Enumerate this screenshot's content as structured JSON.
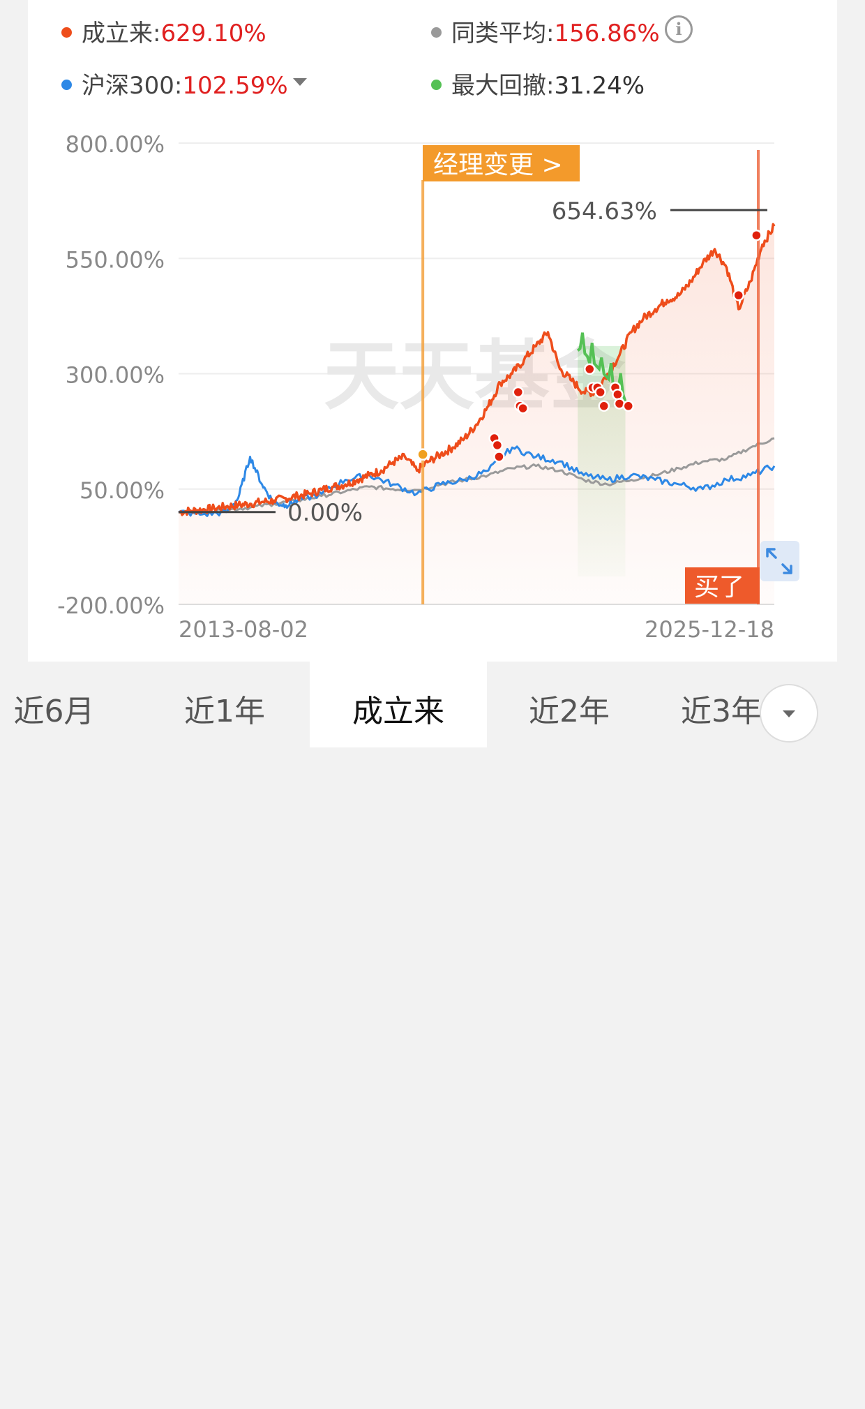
{
  "legend": {
    "fund": {
      "label": "成立来:",
      "value": "629.10%",
      "color": "#ee4d1b"
    },
    "peer": {
      "label": "同类平均:",
      "value": "156.86%",
      "color": "#9a9a9a"
    },
    "index": {
      "label": "沪深300:",
      "value": "102.59%",
      "color": "#2d88e6"
    },
    "drawdown": {
      "label": "最大回撤:",
      "value": "31.24%",
      "color": "#55c155"
    }
  },
  "icons": {
    "info": "info-icon",
    "dropdown": "chevron-down-icon",
    "expand": "expand-icon",
    "more": "chevron-down-icon"
  },
  "chart_data": {
    "type": "line",
    "yticks": [
      "800.00%",
      "550.00%",
      "300.00%",
      "50.00%",
      "-200.00%"
    ],
    "ylim": [
      -200,
      800
    ],
    "x_start_label": "2013-08-02",
    "x_end_label": "2025-12-18",
    "max_label": "654.63%",
    "zero_label": "0.00%",
    "manager_change_label": "经理变更 >",
    "buy_label": "买了",
    "watermark": "天天基金",
    "series": [
      {
        "name": "成立来",
        "color": "#ee4d1b",
        "x": [
          0,
          2,
          4,
          6,
          8,
          10,
          12,
          14,
          16,
          18,
          20,
          22,
          24,
          26,
          28,
          30,
          32,
          34,
          36,
          38,
          40,
          42,
          44,
          46,
          48,
          50,
          52,
          54,
          56,
          58,
          60,
          62,
          64,
          66,
          68,
          70,
          72,
          74,
          76,
          78,
          80,
          82,
          84,
          86,
          88,
          90,
          92,
          94,
          96,
          98,
          100
        ],
        "y": [
          0,
          3,
          5,
          8,
          12,
          15,
          18,
          22,
          25,
          30,
          35,
          40,
          48,
          55,
          60,
          70,
          80,
          90,
          108,
          120,
          90,
          110,
          125,
          140,
          160,
          190,
          230,
          280,
          300,
          330,
          360,
          390,
          310,
          285,
          260,
          260,
          300,
          340,
          390,
          420,
          440,
          460,
          470,
          500,
          540,
          570,
          530,
          440,
          500,
          580,
          620
        ]
      },
      {
        "name": "同类平均",
        "color": "#9a9a9a",
        "x": [
          0,
          4,
          8,
          12,
          16,
          20,
          24,
          28,
          32,
          36,
          40,
          44,
          48,
          52,
          56,
          60,
          64,
          68,
          72,
          76,
          80,
          84,
          88,
          92,
          96,
          100
        ],
        "y": [
          0,
          2,
          5,
          10,
          18,
          25,
          35,
          45,
          55,
          50,
          48,
          60,
          70,
          80,
          95,
          100,
          90,
          70,
          60,
          70,
          80,
          95,
          110,
          115,
          140,
          160
        ]
      },
      {
        "name": "沪深300",
        "color": "#2d88e6",
        "x": [
          0,
          4,
          8,
          10,
          12,
          14,
          16,
          18,
          20,
          24,
          28,
          32,
          36,
          40,
          44,
          48,
          52,
          56,
          60,
          64,
          68,
          72,
          76,
          80,
          84,
          88,
          92,
          96,
          100
        ],
        "y": [
          0,
          -5,
          0,
          30,
          120,
          60,
          20,
          15,
          25,
          40,
          70,
          80,
          60,
          40,
          60,
          70,
          90,
          140,
          120,
          110,
          80,
          70,
          80,
          70,
          60,
          50,
          70,
          80,
          100
        ]
      },
      {
        "name": "最大回撤",
        "color": "#55c155",
        "x": [
          67,
          75
        ],
        "y": [
          360,
          250
        ]
      }
    ],
    "buy_markers": [
      {
        "x": 53,
        "y": 160
      },
      {
        "x": 53.5,
        "y": 145
      },
      {
        "x": 53.8,
        "y": 120
      },
      {
        "x": 57,
        "y": 260
      },
      {
        "x": 57.3,
        "y": 230
      },
      {
        "x": 57.8,
        "y": 225
      },
      {
        "x": 69,
        "y": 310
      },
      {
        "x": 69.5,
        "y": 270
      },
      {
        "x": 70.3,
        "y": 270
      },
      {
        "x": 70.8,
        "y": 260
      },
      {
        "x": 71.4,
        "y": 230
      },
      {
        "x": 73.3,
        "y": 270
      },
      {
        "x": 73.7,
        "y": 255
      },
      {
        "x": 74,
        "y": 235
      },
      {
        "x": 75.5,
        "y": 230
      },
      {
        "x": 94,
        "y": 470
      },
      {
        "x": 97,
        "y": 600
      }
    ],
    "manager_change": {
      "x": 41,
      "y": 125
    }
  },
  "tabs": [
    {
      "label": "近6月",
      "active": false
    },
    {
      "label": "近1年",
      "active": false
    },
    {
      "label": "成立来",
      "active": true
    },
    {
      "label": "近2年",
      "active": false
    },
    {
      "label": "近3年",
      "active": false
    }
  ]
}
